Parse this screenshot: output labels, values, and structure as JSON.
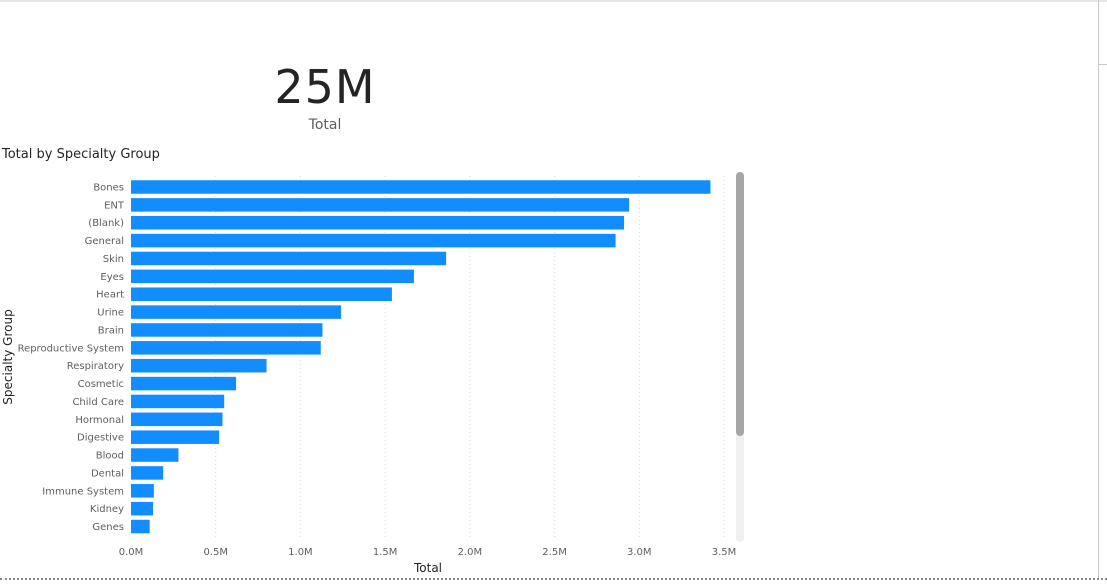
{
  "card": {
    "value": "25M",
    "label": "Total"
  },
  "chart_data": {
    "type": "bar",
    "orientation": "horizontal",
    "title": "Total by Specialty Group",
    "xlabel": "Total",
    "ylabel": "Specialty Group",
    "xlim": [
      0,
      3.5
    ],
    "x_ticks": [
      "0.0M",
      "0.5M",
      "1.0M",
      "1.5M",
      "2.0M",
      "2.5M",
      "3.0M",
      "3.5M"
    ],
    "grid": true,
    "bar_color": "#118DFF",
    "categories": [
      "Bones",
      "ENT",
      "(Blank)",
      "General",
      "Skin",
      "Eyes",
      "Heart",
      "Urine",
      "Brain",
      "Reproductive System",
      "Respiratory",
      "Cosmetic",
      "Child Care",
      "Hormonal",
      "Digestive",
      "Blood",
      "Dental",
      "Immune System",
      "Kidney",
      "Genes"
    ],
    "values": [
      3.42,
      2.94,
      2.91,
      2.86,
      1.86,
      1.67,
      1.54,
      1.24,
      1.13,
      1.12,
      0.8,
      0.62,
      0.55,
      0.54,
      0.52,
      0.28,
      0.19,
      0.135,
      0.13,
      0.11
    ],
    "value_unit": "M"
  }
}
